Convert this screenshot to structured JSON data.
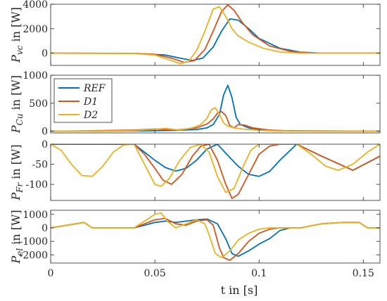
{
  "chart_data": {
    "type": "line",
    "xlabel": "t in [s]",
    "xlim": [
      0,
      0.158
    ],
    "xticks": [
      "0",
      "0.05",
      "0.1",
      "0.15"
    ],
    "xtick_values": [
      0,
      0.05,
      0.1,
      0.15
    ],
    "series_colors": {
      "REF": "#0072BD",
      "D1": "#D95319",
      "D2": "#EDB120"
    },
    "legend": {
      "entries": [
        "REF",
        "D1",
        "D2"
      ],
      "placement": "top-left",
      "panel": 1
    },
    "grid": false,
    "panels": [
      {
        "ylabel": {
          "sym": "P",
          "sub": "vc",
          "unit": " in [W]"
        },
        "ylim": [
          -1000,
          4000
        ],
        "yticks": [
          0,
          2000,
          4000
        ],
        "series": [
          {
            "name": "REF",
            "x": [
              0,
              0.04,
              0.055,
              0.062,
              0.068,
              0.073,
              0.078,
              0.082,
              0.086,
              0.09,
              0.095,
              0.1,
              0.11,
              0.12,
              0.13,
              0.158
            ],
            "y": [
              0,
              -20,
              -150,
              -400,
              -600,
              -400,
              500,
              1800,
              2800,
              2700,
              2000,
              1200,
              400,
              80,
              0,
              0
            ]
          },
          {
            "name": "D1",
            "x": [
              0,
              0.04,
              0.05,
              0.058,
              0.064,
              0.069,
              0.074,
              0.078,
              0.082,
              0.085,
              0.088,
              0.092,
              0.097,
              0.105,
              0.115,
              0.125,
              0.158
            ],
            "y": [
              0,
              -20,
              -100,
              -400,
              -750,
              -600,
              300,
              1800,
              3400,
              3950,
              3500,
              2500,
              1500,
              600,
              150,
              0,
              0
            ]
          },
          {
            "name": "D2",
            "x": [
              0,
              0.04,
              0.05,
              0.056,
              0.062,
              0.066,
              0.07,
              0.074,
              0.078,
              0.081,
              0.084,
              0.087,
              0.09,
              0.095,
              0.102,
              0.11,
              0.12,
              0.158
            ],
            "y": [
              0,
              -30,
              -150,
              -500,
              -850,
              -700,
              200,
              1800,
              3600,
              3800,
              3000,
              2000,
              1400,
              900,
              400,
              100,
              0,
              0
            ]
          }
        ]
      },
      {
        "ylabel": {
          "sym": "P",
          "sub": "Cu",
          "unit": " in [W]"
        },
        "ylim": [
          -30,
          1000
        ],
        "yticks": [
          0,
          500,
          1000
        ],
        "series": [
          {
            "name": "REF",
            "x": [
              0,
              0.04,
              0.06,
              0.07,
              0.075,
              0.078,
              0.081,
              0.083,
              0.085,
              0.087,
              0.089,
              0.091,
              0.095,
              0.1,
              0.11,
              0.158
            ],
            "y": [
              0,
              5,
              15,
              30,
              60,
              120,
              300,
              650,
              820,
              600,
              250,
              120,
              60,
              30,
              10,
              0
            ]
          },
          {
            "name": "D1",
            "x": [
              0,
              0.04,
              0.05,
              0.06,
              0.07,
              0.075,
              0.078,
              0.08,
              0.082,
              0.084,
              0.086,
              0.088,
              0.09,
              0.093,
              0.097,
              0.105,
              0.115,
              0.158
            ],
            "y": [
              0,
              20,
              40,
              20,
              60,
              130,
              220,
              320,
              350,
              280,
              100,
              60,
              120,
              110,
              60,
              20,
              5,
              0
            ]
          },
          {
            "name": "D2",
            "x": [
              0,
              0.04,
              0.048,
              0.055,
              0.062,
              0.068,
              0.072,
              0.075,
              0.077,
              0.079,
              0.081,
              0.083,
              0.085,
              0.088,
              0.092,
              0.1,
              0.11,
              0.158
            ],
            "y": [
              0,
              10,
              30,
              50,
              20,
              60,
              120,
              230,
              380,
              420,
              300,
              150,
              90,
              60,
              40,
              15,
              5,
              0
            ]
          }
        ]
      },
      {
        "ylabel": {
          "sym": "P",
          "sub": "Fr",
          "unit": " in [W]"
        },
        "ylim": [
          -140,
          0
        ],
        "yticks": [
          -100,
          -50,
          0
        ],
        "series": [
          {
            "name": "REF",
            "x": [
              0,
              0.02,
              0.04,
              0.045,
              0.05,
              0.055,
              0.06,
              0.065,
              0.07,
              0.075,
              0.08,
              0.085,
              0.09,
              0.095,
              0.1,
              0.105,
              0.11,
              0.118,
              0.13,
              0.145,
              0.158
            ],
            "y": [
              0,
              0,
              0,
              -20,
              -40,
              -58,
              -67,
              -60,
              -40,
              -12,
              0,
              -28,
              -55,
              -75,
              -80,
              -68,
              -40,
              0,
              -30,
              -65,
              -30
            ]
          },
          {
            "name": "D1",
            "x": [
              0,
              0.02,
              0.04,
              0.045,
              0.05,
              0.054,
              0.058,
              0.063,
              0.068,
              0.072,
              0.076,
              0.08,
              0.084,
              0.087,
              0.09,
              0.095,
              0.1,
              0.105,
              0.11,
              0.118,
              0.13,
              0.145,
              0.158
            ],
            "y": [
              0,
              0,
              0,
              -25,
              -60,
              -90,
              -100,
              -75,
              -30,
              -5,
              0,
              -40,
              -100,
              -135,
              -125,
              -75,
              -25,
              -5,
              0,
              0,
              -30,
              -65,
              -30
            ]
          },
          {
            "name": "D2",
            "x": [
              0,
              0.005,
              0.01,
              0.015,
              0.02,
              0.025,
              0.03,
              0.035,
              0.04,
              0.045,
              0.05,
              0.053,
              0.057,
              0.062,
              0.067,
              0.072,
              0.076,
              0.08,
              0.084,
              0.088,
              0.092,
              0.096,
              0.1,
              0.105,
              0.11,
              0.118,
              0.125,
              0.132,
              0.138,
              0.145,
              0.152,
              0.158
            ],
            "y": [
              0,
              -15,
              -50,
              -78,
              -80,
              -55,
              -20,
              -2,
              0,
              -50,
              -100,
              -105,
              -85,
              -40,
              -8,
              0,
              -20,
              -80,
              -120,
              -110,
              -60,
              -15,
              0,
              0,
              0,
              0,
              -25,
              -55,
              -65,
              -50,
              -20,
              0
            ]
          }
        ]
      },
      {
        "ylabel": {
          "sym": "P",
          "sub": "el",
          "unit": " in [W]"
        },
        "ylim": [
          -2600,
          1300
        ],
        "yticks": [
          -2000,
          -1000,
          0,
          1000
        ],
        "series": [
          {
            "name": "REF",
            "x": [
              0,
              0.01,
              0.016,
              0.02,
              0.03,
              0.04,
              0.045,
              0.05,
              0.055,
              0.06,
              0.065,
              0.07,
              0.075,
              0.08,
              0.084,
              0.087,
              0.09,
              0.095,
              0.1,
              0.105,
              0.11,
              0.115,
              0.12,
              0.13,
              0.14,
              0.148,
              0.152,
              0.158
            ],
            "y": [
              0,
              250,
              400,
              0,
              0,
              0,
              200,
              400,
              500,
              400,
              500,
              600,
              650,
              300,
              -800,
              -1900,
              -2100,
              -1700,
              -1200,
              -800,
              -200,
              0,
              0,
              300,
              400,
              400,
              0,
              0
            ]
          },
          {
            "name": "D1",
            "x": [
              0,
              0.01,
              0.016,
              0.02,
              0.03,
              0.04,
              0.045,
              0.05,
              0.055,
              0.06,
              0.065,
              0.07,
              0.075,
              0.078,
              0.081,
              0.083,
              0.086,
              0.09,
              0.095,
              0.1,
              0.105,
              0.11,
              0.115,
              0.12,
              0.13,
              0.14,
              0.148,
              0.152,
              0.158
            ],
            "y": [
              0,
              250,
              400,
              0,
              0,
              0,
              300,
              600,
              700,
              300,
              200,
              500,
              600,
              200,
              -1500,
              -2200,
              -2400,
              -1900,
              -1000,
              -400,
              -100,
              0,
              0,
              0,
              300,
              400,
              400,
              0,
              0
            ]
          },
          {
            "name": "D2",
            "x": [
              0,
              0.01,
              0.016,
              0.02,
              0.03,
              0.04,
              0.045,
              0.05,
              0.053,
              0.056,
              0.06,
              0.065,
              0.07,
              0.074,
              0.076,
              0.079,
              0.082,
              0.086,
              0.09,
              0.095,
              0.1,
              0.105,
              0.11,
              0.115,
              0.12,
              0.13,
              0.14,
              0.148,
              0.152,
              0.158
            ],
            "y": [
              0,
              250,
              400,
              0,
              0,
              0,
              500,
              1000,
              1100,
              500,
              0,
              300,
              600,
              300,
              -500,
              -1900,
              -2200,
              -1700,
              -900,
              -400,
              -100,
              0,
              0,
              0,
              0,
              300,
              400,
              400,
              0,
              0
            ]
          }
        ]
      }
    ]
  }
}
